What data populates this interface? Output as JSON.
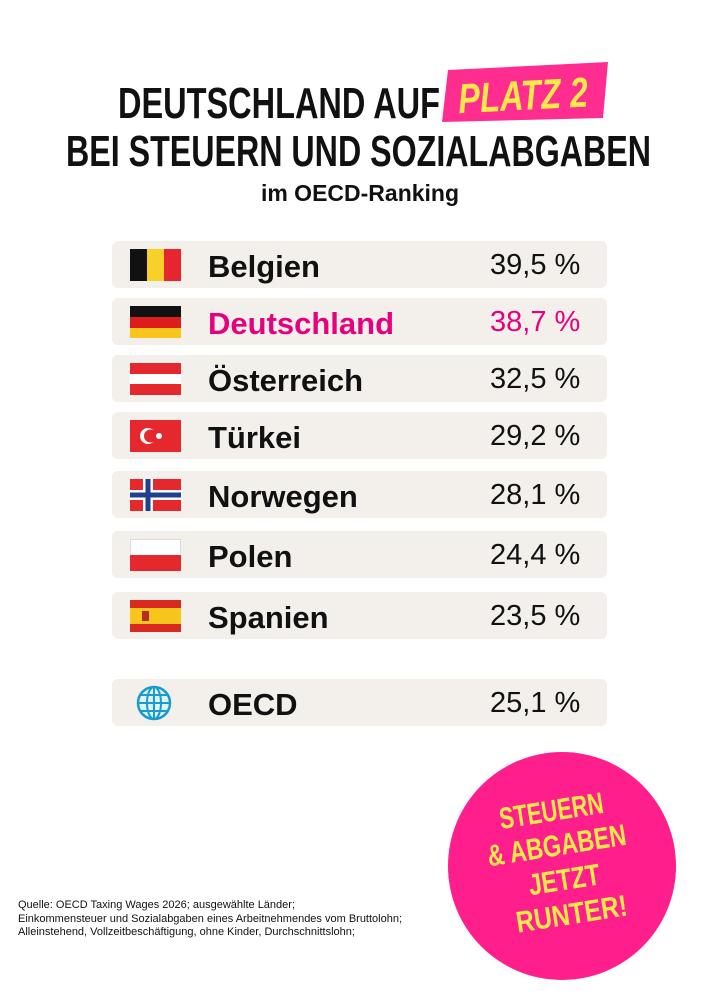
{
  "header": {
    "title_line1": "DEUTSCHLAND AUF",
    "title_highlight": "PLATZ 2",
    "title_line2": "BEI STEUERN UND SOZIALABGABEN",
    "subtitle": "im OECD-Ranking"
  },
  "table": {
    "rows": [
      [
        "Belgien",
        "39,5 %"
      ],
      [
        "Deutschland",
        "38,7 %"
      ],
      [
        "Österreich",
        "32,5 %"
      ],
      [
        "Türkei",
        "29,2 %"
      ],
      [
        "Norwegen",
        "28,1 %"
      ],
      [
        "Polen",
        "24,4 %"
      ],
      [
        "Spanien",
        "23,5 %"
      ],
      [
        "OECD",
        "25,1 %"
      ]
    ]
  },
  "badge": {
    "lines": [
      "STEUERN",
      "& ABGABEN",
      "JETZT",
      "RUNTER!"
    ]
  },
  "footnote": {
    "lines": [
      "Quelle: OECD Taxing Wages 2026; ausgewählte Länder;",
      "Einkommensteuer und Sozialabgaben eines Arbeitnehmendes vom Bruttolohn;",
      "Alleinstehend, Vollzeitbeschäftigung, ohne Kinder, Durchschnittslohn;"
    ]
  }
}
